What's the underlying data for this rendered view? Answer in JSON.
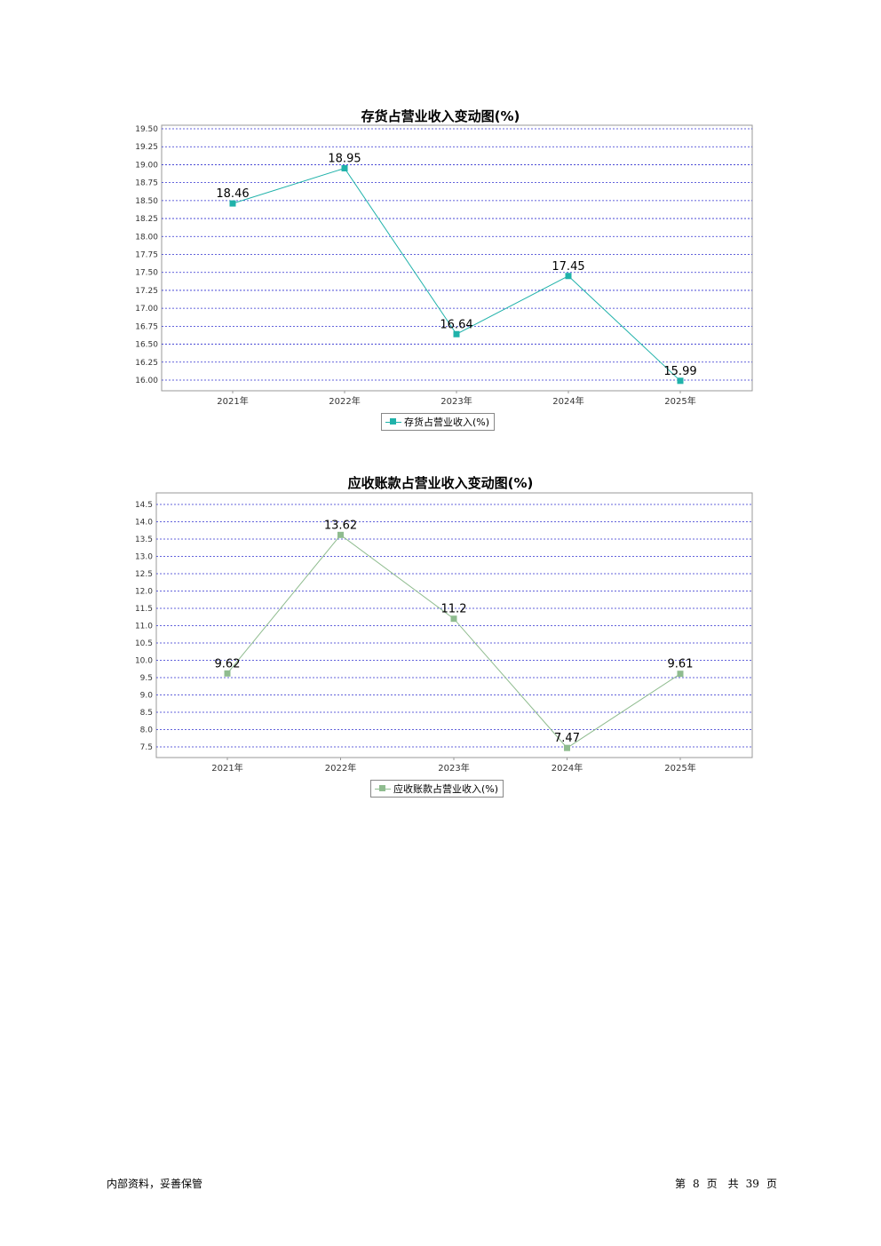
{
  "footer": {
    "left": "内部资料，妥善保管",
    "page_prefix": "第",
    "page_num": "8",
    "page_mid": "页　共",
    "page_total": "39",
    "page_suffix": "页"
  },
  "chart_data": [
    {
      "type": "line",
      "title": "存货占营业收入变动图(%)",
      "categories": [
        "2021年",
        "2022年",
        "2023年",
        "2024年",
        "2025年"
      ],
      "series": [
        {
          "name": "存货占营业收入(%)",
          "values": [
            18.46,
            18.95,
            16.64,
            17.45,
            15.99
          ]
        }
      ],
      "data_labels": [
        "18.46",
        "18.95",
        "16.64",
        "17.45",
        "15.99"
      ],
      "yticks": [
        "19.50",
        "19.25",
        "19.00",
        "18.75",
        "18.50",
        "18.25",
        "18.00",
        "17.75",
        "17.50",
        "17.25",
        "17.00",
        "16.75",
        "16.50",
        "16.25",
        "16.00"
      ],
      "ylim": [
        16.0,
        19.5
      ],
      "grid": true,
      "legend_position": "bottom-center",
      "color": "#20b2aa"
    },
    {
      "type": "line",
      "title": "应收账款占营业收入变动图(%)",
      "categories": [
        "2021年",
        "2022年",
        "2023年",
        "2024年",
        "2025年"
      ],
      "series": [
        {
          "name": "应收账款占营业收入(%)",
          "values": [
            9.62,
            13.62,
            11.2,
            7.47,
            9.61
          ]
        }
      ],
      "data_labels": [
        "9.62",
        "13.62",
        "11.2",
        "7.47",
        "9.61"
      ],
      "yticks": [
        "14.5",
        "14.0",
        "13.5",
        "13.0",
        "12.5",
        "12.0",
        "11.5",
        "11.0",
        "10.5",
        "10.0",
        "9.5",
        "9.0",
        "8.5",
        "8.0",
        "7.5"
      ],
      "ylim": [
        7.5,
        14.5
      ],
      "grid": true,
      "legend_position": "bottom-center",
      "color": "#8fbc8f"
    }
  ]
}
